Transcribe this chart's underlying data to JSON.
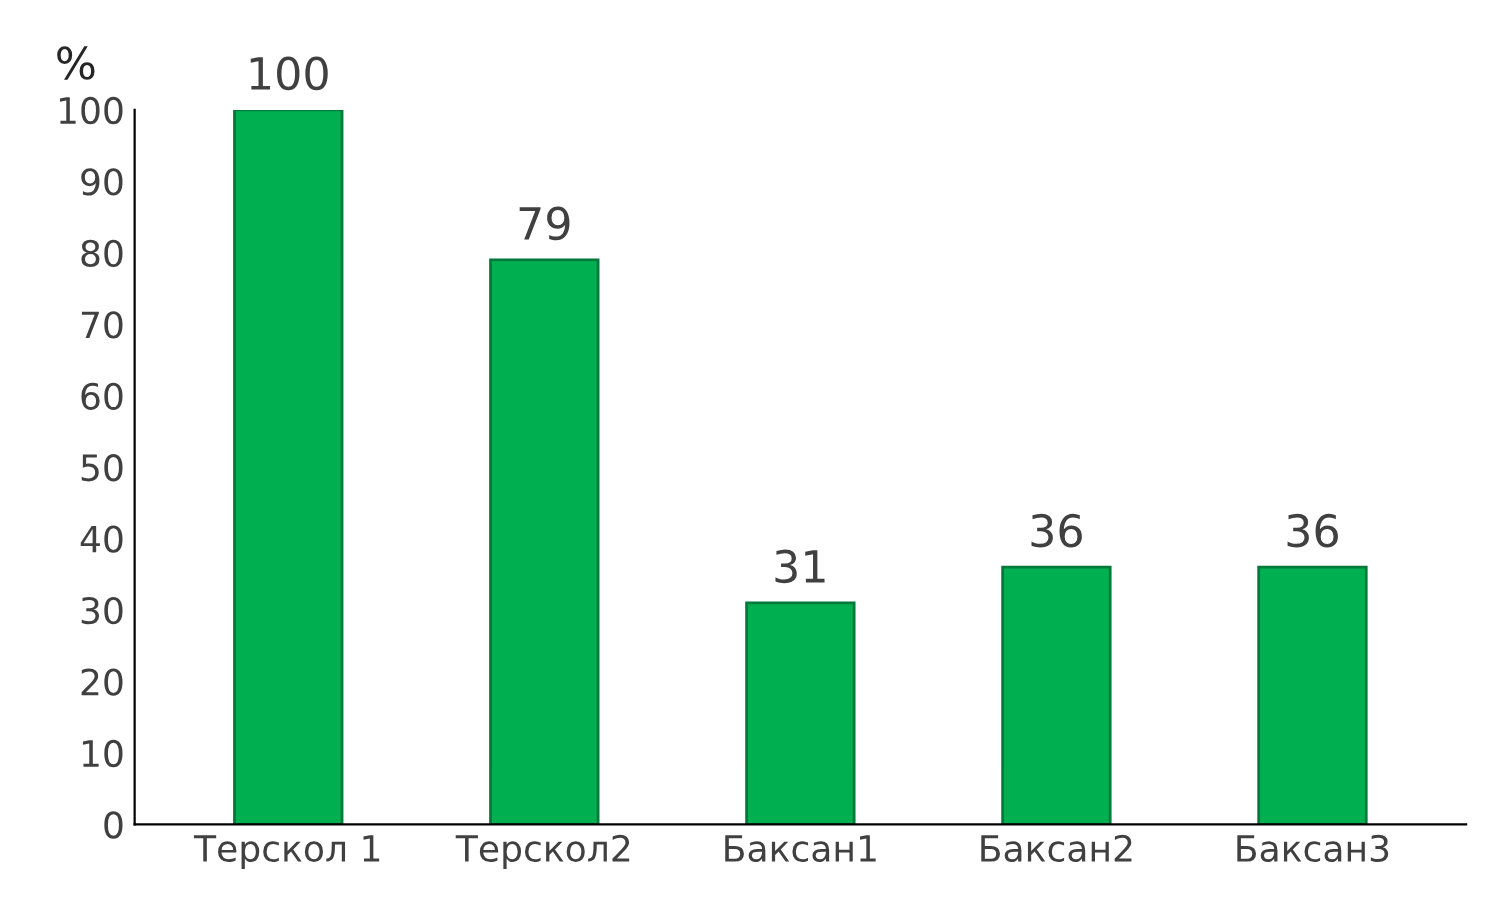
{
  "chart_data": {
    "type": "bar",
    "ylabel": "%",
    "categories": [
      "Терскол 1",
      "Терскол2",
      "Баксан1",
      "Баксан2",
      "Баксан3"
    ],
    "values": [
      100,
      79,
      31,
      36,
      36
    ],
    "color": "#00b050",
    "ylim": [
      0,
      100
    ],
    "yticks": [
      0,
      10,
      20,
      30,
      40,
      50,
      60,
      70,
      80,
      90,
      100
    ],
    "data_labels": true,
    "grid": false,
    "legend": false
  }
}
